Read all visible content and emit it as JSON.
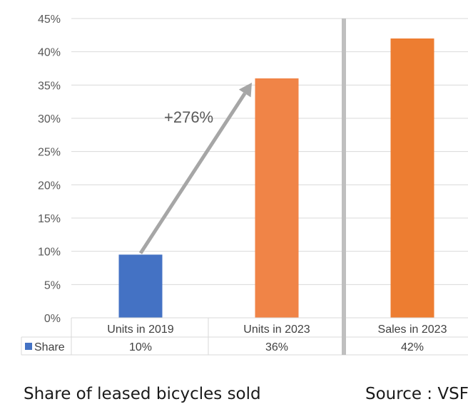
{
  "chart_data": {
    "type": "bar",
    "categories": [
      "Units in 2019",
      "Units in 2023",
      "Sales in 2023"
    ],
    "series": [
      {
        "name": "Share",
        "values": [
          9.5,
          36,
          42
        ],
        "table_labels": [
          "10%",
          "36%",
          "42%"
        ]
      }
    ],
    "bar_colors": [
      "#4472c4",
      "#f08447",
      "#ed7d31"
    ],
    "ylim": [
      0,
      45
    ],
    "yticks": [
      0,
      5,
      10,
      15,
      20,
      25,
      30,
      35,
      40,
      45
    ],
    "ytick_labels": [
      "0%",
      "5%",
      "10%",
      "15%",
      "20%",
      "25%",
      "30%",
      "35%",
      "40%",
      "45%"
    ],
    "grid": true,
    "legend": "data-table-left",
    "separator_after_category": 1,
    "annotation": {
      "text": "+276%",
      "from_category": 0,
      "to_category": 1,
      "arrow_color": "#a6a6a6"
    },
    "title": "",
    "xlabel": "",
    "ylabel": ""
  },
  "captions": {
    "left": "Share of leased bicycles sold",
    "right": "Source : VSF"
  }
}
